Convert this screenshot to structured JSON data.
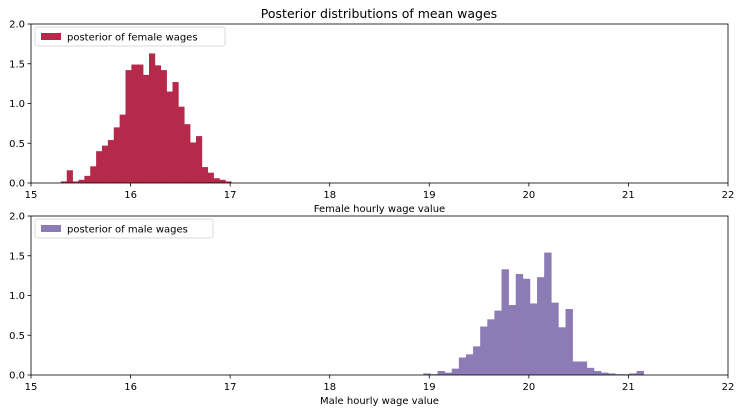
{
  "chart_data": [
    {
      "type": "histogram",
      "title": "Posterior distributions of mean wages",
      "xlabel": "Female hourly wage value",
      "ylabel": "",
      "xlim": [
        15,
        22
      ],
      "ylim": [
        0,
        2.0
      ],
      "xticks": [
        "15",
        "16",
        "17",
        "18",
        "19",
        "20",
        "21",
        "22"
      ],
      "yticks": [
        "0.0",
        "0.5",
        "1.0",
        "1.5",
        "2.0"
      ],
      "legend": {
        "label": "posterior of female wages",
        "placement": "top-left"
      },
      "color": "#b5294a",
      "bin_start": 15.3,
      "bin_width": 0.059,
      "values": [
        0.02,
        0.16,
        0.02,
        0.04,
        0.09,
        0.21,
        0.4,
        0.47,
        0.54,
        0.7,
        0.86,
        1.42,
        1.49,
        1.49,
        1.36,
        1.63,
        1.48,
        1.42,
        1.15,
        1.27,
        0.96,
        0.74,
        0.51,
        0.59,
        0.2,
        0.13,
        0.06,
        0.04,
        0.02
      ]
    },
    {
      "type": "histogram",
      "title": "",
      "xlabel": "Male hourly wage value",
      "ylabel": "",
      "xlim": [
        15,
        22
      ],
      "ylim": [
        0,
        2.0
      ],
      "xticks": [
        "15",
        "16",
        "17",
        "18",
        "19",
        "20",
        "21",
        "22"
      ],
      "yticks": [
        "0.0",
        "0.5",
        "1.0",
        "1.5",
        "2.0"
      ],
      "legend": {
        "label": "posterior of male wages",
        "placement": "top-left"
      },
      "color": "#8d7bb5",
      "bin_start": 18.94,
      "bin_width": 0.0714,
      "values": [
        0.02,
        0.01,
        0.05,
        0.03,
        0.08,
        0.22,
        0.26,
        0.36,
        0.61,
        0.7,
        0.81,
        1.33,
        0.88,
        1.27,
        1.21,
        0.9,
        1.23,
        1.54,
        0.91,
        0.6,
        0.83,
        0.17,
        0.17,
        0.09,
        0.05,
        0.03,
        0.02,
        0.01,
        0.01,
        0.02,
        0.05
      ]
    }
  ]
}
